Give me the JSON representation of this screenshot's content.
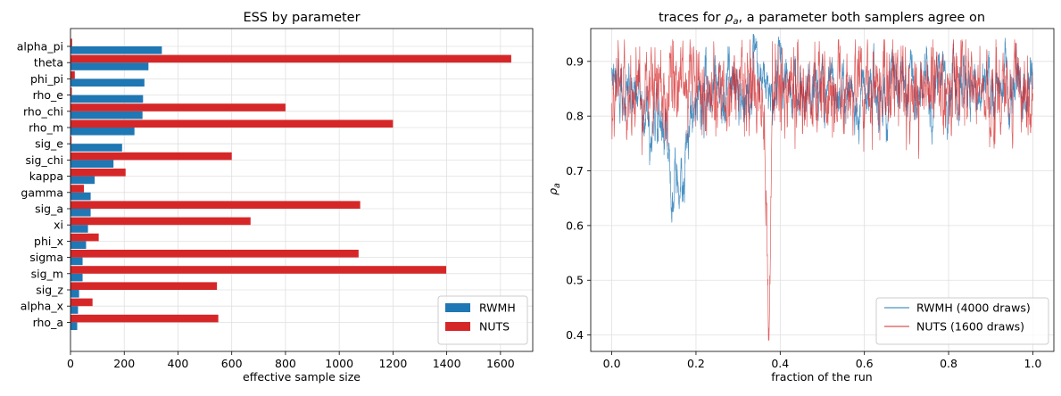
{
  "colors": {
    "rwmh": "#1f77b4",
    "nuts": "#d62728"
  },
  "chart_data": [
    {
      "type": "bar",
      "orientation": "horizontal",
      "title": "ESS by parameter",
      "xlabel": "effective sample size",
      "ylabel": "",
      "xlim": [
        0,
        1720
      ],
      "xticks": [
        0,
        200,
        400,
        600,
        800,
        1000,
        1200,
        1400,
        1600
      ],
      "grid": true,
      "legend": "lower right",
      "categories": [
        "alpha_pi",
        "theta",
        "phi_pi",
        "rho_e",
        "rho_chi",
        "rho_m",
        "sig_e",
        "sig_chi",
        "kappa",
        "gamma",
        "sig_a",
        "xi",
        "phi_x",
        "sigma",
        "sig_m",
        "sig_z",
        "alpha_x",
        "rho_a"
      ],
      "series": [
        {
          "name": "RWMH",
          "values": [
            340,
            290,
            275,
            270,
            268,
            238,
            192,
            160,
            90,
            75,
            75,
            65,
            58,
            45,
            45,
            32,
            28,
            25
          ]
        },
        {
          "name": "NUTS",
          "values": [
            6,
            1640,
            16,
            5,
            800,
            1200,
            4,
            600,
            205,
            50,
            1078,
            670,
            105,
            1072,
            1398,
            545,
            82,
            550
          ]
        }
      ]
    },
    {
      "type": "line",
      "title": "traces for ρa, a parameter both samplers agree on",
      "title_main": "traces for ",
      "title_symbol": "ρ",
      "title_sub": "a",
      "title_tail": ", a parameter both samplers agree on",
      "xlabel": "fraction of the run",
      "ylabel": "ρa",
      "ylabel_symbol": "ρ",
      "ylabel_sub": "a",
      "xlim": [
        -0.05,
        1.05
      ],
      "ylim": [
        0.37,
        0.96
      ],
      "xticks": [
        "0.0",
        "0.2",
        "0.4",
        "0.6",
        "0.8",
        "1.0"
      ],
      "yticks": [
        "0.4",
        "0.5",
        "0.6",
        "0.7",
        "0.8",
        "0.9"
      ],
      "grid": true,
      "legend": "lower right",
      "series": [
        {
          "name": "RWMH (4000 draws)",
          "draws": 4000,
          "mean": 0.855,
          "x_range": [
            0,
            1
          ],
          "y_range": [
            0.58,
            0.95
          ]
        },
        {
          "name": "NUTS (1600 draws)",
          "draws": 1600,
          "mean": 0.85,
          "x_range": [
            0,
            1
          ],
          "y_range": [
            0.39,
            0.94
          ]
        }
      ]
    }
  ]
}
